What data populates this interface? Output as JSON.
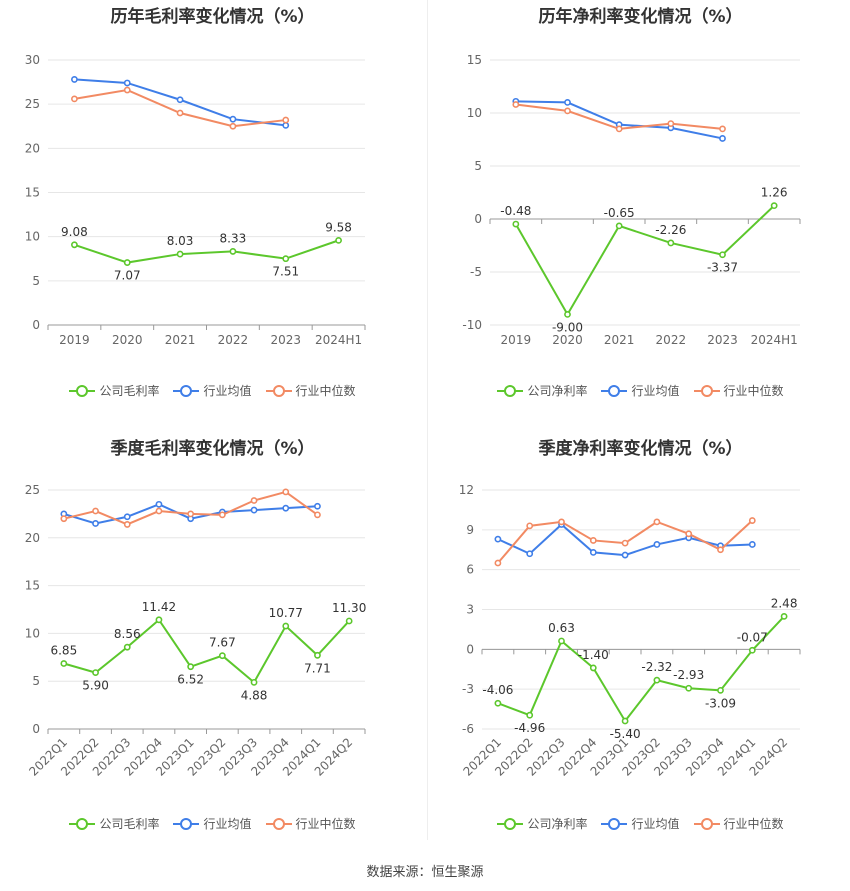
{
  "source": "数据来源：恒生聚源",
  "colors": {
    "company": "#5cc72c",
    "mean": "#3f7ee8",
    "median": "#f28a63"
  },
  "chart_data": [
    {
      "type": "line",
      "title": "历年毛利率变化情况（%）",
      "categories": [
        "2019",
        "2020",
        "2021",
        "2022",
        "2023",
        "2024H1"
      ],
      "y_ticks": [
        0,
        5,
        10,
        15,
        20,
        25,
        30
      ],
      "ylim": [
        0,
        30
      ],
      "grid": true,
      "legend": "bottom",
      "series": [
        {
          "name": "公司毛利率",
          "key": "company",
          "values": [
            9.08,
            7.07,
            8.03,
            8.33,
            7.51,
            9.58
          ],
          "labels": [
            "9.08",
            "7.07",
            "8.03",
            "8.33",
            "7.51",
            "9.58"
          ]
        },
        {
          "name": "行业均值",
          "key": "mean",
          "values": [
            27.8,
            27.4,
            25.5,
            23.3,
            22.6,
            null
          ]
        },
        {
          "name": "行业中位数",
          "key": "median",
          "values": [
            25.6,
            26.6,
            24.0,
            22.5,
            23.2,
            null
          ]
        }
      ]
    },
    {
      "type": "line",
      "title": "历年净利率变化情况（%）",
      "categories": [
        "2019",
        "2020",
        "2021",
        "2022",
        "2023",
        "2024H1"
      ],
      "y_ticks": [
        -10,
        -5,
        0,
        5,
        10,
        15
      ],
      "ylim": [
        -10,
        15
      ],
      "grid": true,
      "legend": "bottom",
      "series": [
        {
          "name": "公司净利率",
          "key": "company",
          "values": [
            -0.48,
            -9.0,
            -0.65,
            -2.26,
            -3.37,
            1.26
          ],
          "labels": [
            "-0.48",
            "-9.00",
            "-0.65",
            "-2.26",
            "-3.37",
            "1.26"
          ]
        },
        {
          "name": "行业均值",
          "key": "mean",
          "values": [
            11.1,
            11.0,
            8.9,
            8.6,
            7.6,
            null
          ]
        },
        {
          "name": "行业中位数",
          "key": "median",
          "values": [
            10.8,
            10.2,
            8.5,
            9.0,
            8.5,
            null
          ]
        }
      ]
    },
    {
      "type": "line",
      "title": "季度毛利率变化情况（%）",
      "categories": [
        "2022Q1",
        "2022Q2",
        "2022Q3",
        "2022Q4",
        "2023Q1",
        "2023Q2",
        "2023Q3",
        "2023Q4",
        "2024Q1",
        "2024Q2"
      ],
      "y_ticks": [
        0,
        5,
        10,
        15,
        20,
        25
      ],
      "ylim": [
        0,
        25
      ],
      "grid": true,
      "legend": "bottom",
      "series": [
        {
          "name": "公司毛利率",
          "key": "company",
          "values": [
            6.85,
            5.9,
            8.56,
            11.42,
            6.52,
            7.67,
            4.88,
            10.77,
            7.71,
            11.3
          ],
          "labels": [
            "6.85",
            "5.90",
            "8.56",
            "11.42",
            "6.52",
            "7.67",
            "4.88",
            "10.77",
            "7.71",
            "11.30"
          ]
        },
        {
          "name": "行业均值",
          "key": "mean",
          "values": [
            22.5,
            21.5,
            22.2,
            23.5,
            22.0,
            22.7,
            22.9,
            23.1,
            23.3,
            null
          ]
        },
        {
          "name": "行业中位数",
          "key": "median",
          "values": [
            22.0,
            22.8,
            21.4,
            22.8,
            22.5,
            22.4,
            23.9,
            24.8,
            22.4,
            null
          ]
        }
      ]
    },
    {
      "type": "line",
      "title": "季度净利率变化情况（%）",
      "categories": [
        "2022Q1",
        "2022Q2",
        "2022Q3",
        "2022Q4",
        "2023Q1",
        "2023Q2",
        "2023Q3",
        "2023Q4",
        "2024Q1",
        "2024Q2"
      ],
      "y_ticks": [
        -6,
        -3,
        0,
        3,
        6,
        9,
        12
      ],
      "ylim": [
        -6,
        12
      ],
      "grid": true,
      "legend": "bottom",
      "series": [
        {
          "name": "公司净利率",
          "key": "company",
          "values": [
            -4.06,
            -4.96,
            0.63,
            -1.4,
            -5.4,
            -2.32,
            -2.93,
            -3.09,
            -0.07,
            2.48
          ],
          "labels": [
            "-4.06",
            "-4.96",
            "0.63",
            "-1.40",
            "-5.40",
            "-2.32",
            "-2.93",
            "-3.09",
            "-0.07",
            "2.48"
          ]
        },
        {
          "name": "行业均值",
          "key": "mean",
          "values": [
            8.3,
            7.2,
            9.4,
            7.3,
            7.1,
            7.9,
            8.4,
            7.8,
            7.9,
            null
          ]
        },
        {
          "name": "行业中位数",
          "key": "median",
          "values": [
            6.5,
            9.3,
            9.6,
            8.2,
            8.0,
            9.6,
            8.7,
            7.5,
            9.7,
            null
          ]
        }
      ]
    }
  ]
}
